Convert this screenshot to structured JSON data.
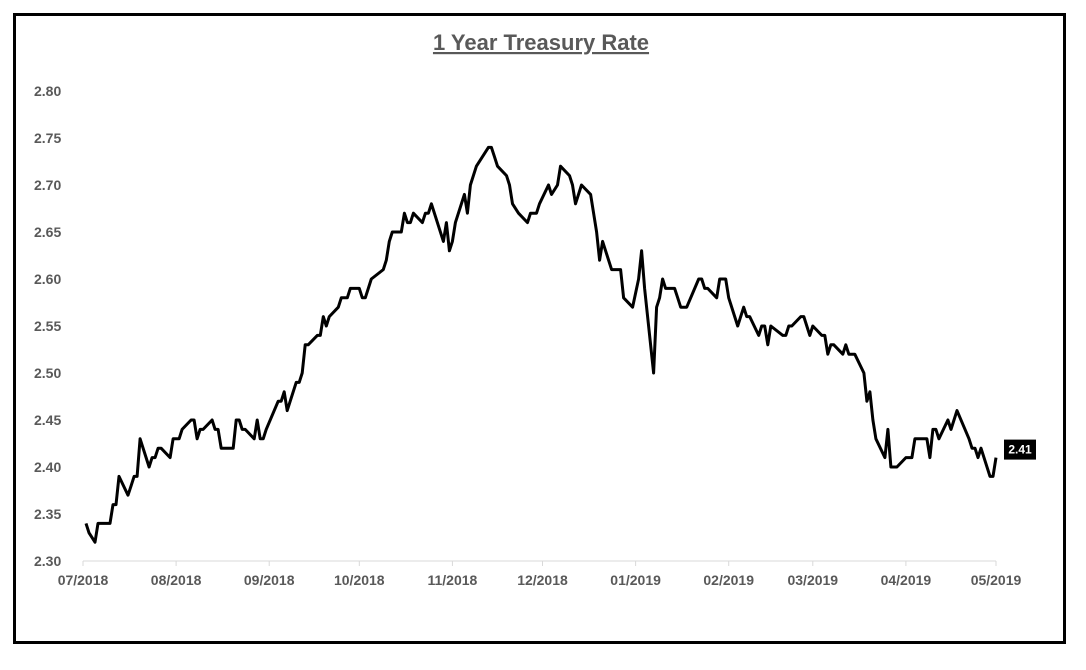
{
  "chart_data": {
    "type": "line",
    "title": "1 Year Treasury Rate",
    "xlabel": "",
    "ylabel": "",
    "ylim": [
      2.3,
      2.8
    ],
    "yticks": [
      "2.30",
      "2.35",
      "2.40",
      "2.45",
      "2.50",
      "2.55",
      "2.60",
      "2.65",
      "2.70",
      "2.75",
      "2.80"
    ],
    "xticks": [
      "07/2018",
      "08/2018",
      "09/2018",
      "10/2018",
      "11/2018",
      "12/2018",
      "01/2019",
      "02/2019",
      "03/2019",
      "04/2019",
      "05/2019"
    ],
    "xlim": [
      "2018-07-01",
      "2019-05-01"
    ],
    "grid": false,
    "legend": "none",
    "line_color": "#000000",
    "end_label": "2.41",
    "series": [
      {
        "x": [
          "2018-07-02",
          "2018-07-03",
          "2018-07-05",
          "2018-07-06",
          "2018-07-09",
          "2018-07-10",
          "2018-07-11",
          "2018-07-12",
          "2018-07-13",
          "2018-07-16",
          "2018-07-17",
          "2018-07-18",
          "2018-07-19",
          "2018-07-20",
          "2018-07-23",
          "2018-07-24",
          "2018-07-25",
          "2018-07-26",
          "2018-07-27",
          "2018-07-30",
          "2018-07-31",
          "2018-08-01",
          "2018-08-02",
          "2018-08-03",
          "2018-08-06",
          "2018-08-07",
          "2018-08-08",
          "2018-08-09",
          "2018-08-10",
          "2018-08-13",
          "2018-08-14",
          "2018-08-15",
          "2018-08-16",
          "2018-08-17",
          "2018-08-20",
          "2018-08-21",
          "2018-08-22",
          "2018-08-23",
          "2018-08-24",
          "2018-08-27",
          "2018-08-28",
          "2018-08-29",
          "2018-08-30",
          "2018-08-31",
          "2018-09-04",
          "2018-09-05",
          "2018-09-06",
          "2018-09-07",
          "2018-09-10",
          "2018-09-11",
          "2018-09-12",
          "2018-09-13",
          "2018-09-14",
          "2018-09-17",
          "2018-09-18",
          "2018-09-19",
          "2018-09-20",
          "2018-09-21",
          "2018-09-24",
          "2018-09-25",
          "2018-09-26",
          "2018-09-27",
          "2018-09-28",
          "2018-10-01",
          "2018-10-02",
          "2018-10-03",
          "2018-10-04",
          "2018-10-05",
          "2018-10-09",
          "2018-10-10",
          "2018-10-11",
          "2018-10-12",
          "2018-10-15",
          "2018-10-16",
          "2018-10-17",
          "2018-10-18",
          "2018-10-19",
          "2018-10-22",
          "2018-10-23",
          "2018-10-24",
          "2018-10-25",
          "2018-10-26",
          "2018-10-29",
          "2018-10-30",
          "2018-10-31",
          "2018-11-01",
          "2018-11-02",
          "2018-11-05",
          "2018-11-06",
          "2018-11-07",
          "2018-11-08",
          "2018-11-09",
          "2018-11-13",
          "2018-11-14",
          "2018-11-15",
          "2018-11-16",
          "2018-11-19",
          "2018-11-20",
          "2018-11-21",
          "2018-11-23",
          "2018-11-26",
          "2018-11-27",
          "2018-11-28",
          "2018-11-29",
          "2018-11-30",
          "2018-12-03",
          "2018-12-04",
          "2018-12-06",
          "2018-12-07",
          "2018-12-10",
          "2018-12-11",
          "2018-12-12",
          "2018-12-13",
          "2018-12-14",
          "2018-12-17",
          "2018-12-18",
          "2018-12-19",
          "2018-12-20",
          "2018-12-21",
          "2018-12-24",
          "2018-12-26",
          "2018-12-27",
          "2018-12-28",
          "2018-12-31",
          "2019-01-02",
          "2019-01-03",
          "2019-01-04",
          "2019-01-07",
          "2019-01-08",
          "2019-01-09",
          "2019-01-10",
          "2019-01-11",
          "2019-01-14",
          "2019-01-15",
          "2019-01-16",
          "2019-01-17",
          "2019-01-18",
          "2019-01-22",
          "2019-01-23",
          "2019-01-24",
          "2019-01-25",
          "2019-01-28",
          "2019-01-29",
          "2019-01-30",
          "2019-01-31",
          "2019-02-01",
          "2019-02-04",
          "2019-02-05",
          "2019-02-06",
          "2019-02-07",
          "2019-02-08",
          "2019-02-11",
          "2019-02-12",
          "2019-02-13",
          "2019-02-14",
          "2019-02-15",
          "2019-02-19",
          "2019-02-20",
          "2019-02-21",
          "2019-02-22",
          "2019-02-25",
          "2019-02-26",
          "2019-02-27",
          "2019-02-28",
          "2019-03-01",
          "2019-03-04",
          "2019-03-05",
          "2019-03-06",
          "2019-03-07",
          "2019-03-08",
          "2019-03-11",
          "2019-03-12",
          "2019-03-13",
          "2019-03-14",
          "2019-03-15",
          "2019-03-18",
          "2019-03-19",
          "2019-03-20",
          "2019-03-21",
          "2019-03-22",
          "2019-03-25",
          "2019-03-26",
          "2019-03-27",
          "2019-03-28",
          "2019-03-29",
          "2019-04-01",
          "2019-04-02",
          "2019-04-03",
          "2019-04-04",
          "2019-04-05",
          "2019-04-08",
          "2019-04-09",
          "2019-04-10",
          "2019-04-11",
          "2019-04-12",
          "2019-04-15",
          "2019-04-16",
          "2019-04-17",
          "2019-04-18",
          "2019-04-22",
          "2019-04-23",
          "2019-04-24",
          "2019-04-25",
          "2019-04-26",
          "2019-04-29",
          "2019-04-30",
          "2019-05-01"
        ],
        "values": [
          2.34,
          2.33,
          2.32,
          2.34,
          2.34,
          2.34,
          2.36,
          2.36,
          2.39,
          2.37,
          2.38,
          2.39,
          2.39,
          2.43,
          2.4,
          2.41,
          2.41,
          2.42,
          2.42,
          2.41,
          2.43,
          2.43,
          2.43,
          2.44,
          2.45,
          2.45,
          2.43,
          2.44,
          2.44,
          2.45,
          2.44,
          2.44,
          2.42,
          2.42,
          2.42,
          2.45,
          2.45,
          2.44,
          2.44,
          2.43,
          2.45,
          2.43,
          2.43,
          2.44,
          2.47,
          2.47,
          2.48,
          2.46,
          2.49,
          2.49,
          2.5,
          2.53,
          2.53,
          2.54,
          2.54,
          2.56,
          2.55,
          2.56,
          2.57,
          2.58,
          2.58,
          2.58,
          2.59,
          2.59,
          2.58,
          2.58,
          2.59,
          2.6,
          2.61,
          2.62,
          2.64,
          2.65,
          2.65,
          2.67,
          2.66,
          2.66,
          2.67,
          2.66,
          2.67,
          2.67,
          2.68,
          2.67,
          2.64,
          2.66,
          2.63,
          2.64,
          2.66,
          2.69,
          2.67,
          2.7,
          2.71,
          2.72,
          2.74,
          2.74,
          2.73,
          2.72,
          2.71,
          2.7,
          2.68,
          2.67,
          2.66,
          2.67,
          2.67,
          2.67,
          2.68,
          2.7,
          2.69,
          2.7,
          2.72,
          2.71,
          2.7,
          2.68,
          2.69,
          2.7,
          2.69,
          2.67,
          2.65,
          2.62,
          2.64,
          2.61,
          2.61,
          2.61,
          2.58,
          2.57,
          2.6,
          2.63,
          2.59,
          2.5,
          2.57,
          2.58,
          2.6,
          2.59,
          2.59,
          2.58,
          2.57,
          2.57,
          2.57,
          2.6,
          2.6,
          2.59,
          2.59,
          2.58,
          2.6,
          2.6,
          2.6,
          2.58,
          2.55,
          2.56,
          2.57,
          2.56,
          2.56,
          2.54,
          2.55,
          2.55,
          2.53,
          2.55,
          2.54,
          2.54,
          2.55,
          2.55,
          2.56,
          2.56,
          2.55,
          2.54,
          2.55,
          2.54,
          2.54,
          2.52,
          2.53,
          2.53,
          2.52,
          2.53,
          2.52,
          2.52,
          2.52,
          2.5,
          2.47,
          2.48,
          2.45,
          2.43,
          2.41,
          2.44,
          2.4,
          2.4,
          2.4,
          2.41,
          2.41,
          2.41,
          2.43,
          2.43,
          2.43,
          2.41,
          2.44,
          2.44,
          2.43,
          2.45,
          2.44,
          2.45,
          2.46,
          2.43,
          2.42,
          2.42,
          2.41,
          2.42,
          2.39,
          2.39,
          2.41
        ]
      }
    ]
  }
}
